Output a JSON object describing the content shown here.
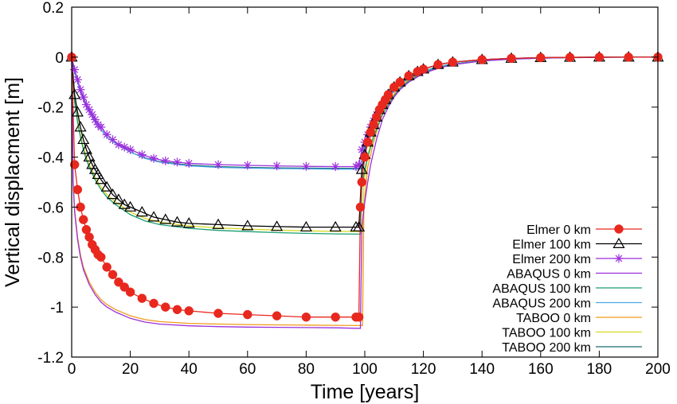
{
  "chart_data": {
    "type": "line",
    "xlabel": "Time [years]",
    "ylabel": "Vertical displacment [m]",
    "xlim": [
      0,
      200
    ],
    "ylim": [
      -1.2,
      0.2
    ],
    "xticks": [
      "0",
      "20",
      "40",
      "60",
      "80",
      "100",
      "120",
      "140",
      "160",
      "180",
      "200"
    ],
    "yticks": [
      "0.2",
      "0",
      "-0.2",
      "-0.4",
      "-0.6",
      "-0.8",
      "-1",
      "-1.2"
    ],
    "grid": false,
    "legend_position": "bottom-right",
    "series": [
      {
        "name": "Elmer 0 km",
        "color": "#e8281e",
        "marker": "filled-circle",
        "line": true,
        "x": [
          0,
          1,
          2,
          3,
          4,
          5,
          6,
          7,
          8,
          9,
          10,
          12,
          14,
          16,
          18,
          20,
          24,
          28,
          32,
          36,
          40,
          50,
          60,
          70,
          80,
          90,
          97,
          98,
          98.5,
          99,
          100,
          101,
          102,
          103,
          104,
          105,
          106,
          107,
          108,
          110,
          112,
          115,
          118,
          120,
          125,
          130,
          140,
          150,
          160,
          170,
          180,
          190,
          200
        ],
        "y": [
          0,
          -0.43,
          -0.53,
          -0.6,
          -0.65,
          -0.69,
          -0.72,
          -0.75,
          -0.77,
          -0.79,
          -0.8,
          -0.84,
          -0.87,
          -0.9,
          -0.92,
          -0.94,
          -0.965,
          -0.985,
          -1.0,
          -1.01,
          -1.015,
          -1.025,
          -1.03,
          -1.035,
          -1.04,
          -1.04,
          -1.04,
          -1.04,
          -0.6,
          -0.5,
          -0.4,
          -0.34,
          -0.3,
          -0.27,
          -0.24,
          -0.21,
          -0.19,
          -0.17,
          -0.15,
          -0.12,
          -0.1,
          -0.075,
          -0.058,
          -0.048,
          -0.03,
          -0.02,
          -0.01,
          -0.005,
          -0.002,
          -0.001,
          0,
          0,
          0
        ]
      },
      {
        "name": "Elmer 100 km",
        "color": "#000000",
        "marker": "open-triangle",
        "line": true,
        "x": [
          0,
          1,
          2,
          3,
          4,
          5,
          6,
          7,
          8,
          9,
          10,
          12,
          14,
          16,
          18,
          20,
          24,
          28,
          32,
          36,
          40,
          50,
          60,
          70,
          80,
          90,
          97,
          98,
          99,
          100,
          101,
          102,
          103,
          104,
          105,
          106,
          107,
          108,
          110,
          112,
          115,
          118,
          120,
          125,
          130,
          140,
          150,
          160,
          170,
          180,
          190,
          200
        ],
        "y": [
          0,
          -0.15,
          -0.22,
          -0.28,
          -0.33,
          -0.37,
          -0.4,
          -0.43,
          -0.45,
          -0.47,
          -0.49,
          -0.52,
          -0.55,
          -0.57,
          -0.59,
          -0.6,
          -0.62,
          -0.64,
          -0.65,
          -0.66,
          -0.665,
          -0.67,
          -0.675,
          -0.678,
          -0.68,
          -0.68,
          -0.68,
          -0.68,
          -0.45,
          -0.39,
          -0.34,
          -0.3,
          -0.27,
          -0.24,
          -0.21,
          -0.19,
          -0.17,
          -0.15,
          -0.12,
          -0.1,
          -0.075,
          -0.058,
          -0.048,
          -0.03,
          -0.02,
          -0.01,
          -0.005,
          -0.002,
          -0.001,
          0,
          0,
          0
        ]
      },
      {
        "name": "Elmer 200 km",
        "color": "#9b2fdc",
        "marker": "asterisk",
        "line": true,
        "x": [
          0,
          1,
          2,
          3,
          4,
          5,
          6,
          7,
          8,
          9,
          10,
          12,
          14,
          16,
          18,
          20,
          24,
          28,
          32,
          36,
          40,
          50,
          60,
          70,
          80,
          90,
          97,
          98,
          99,
          100,
          101,
          102,
          103,
          104,
          105,
          106,
          107,
          108,
          110,
          112,
          115,
          118,
          120,
          125,
          130,
          140,
          150,
          160,
          170,
          180,
          190,
          200
        ],
        "y": [
          0,
          -0.05,
          -0.09,
          -0.13,
          -0.16,
          -0.19,
          -0.21,
          -0.23,
          -0.25,
          -0.27,
          -0.28,
          -0.31,
          -0.33,
          -0.35,
          -0.36,
          -0.37,
          -0.39,
          -0.405,
          -0.415,
          -0.42,
          -0.425,
          -0.43,
          -0.433,
          -0.435,
          -0.437,
          -0.438,
          -0.438,
          -0.43,
          -0.37,
          -0.34,
          -0.31,
          -0.28,
          -0.255,
          -0.23,
          -0.21,
          -0.19,
          -0.17,
          -0.155,
          -0.125,
          -0.1,
          -0.075,
          -0.058,
          -0.048,
          -0.03,
          -0.02,
          -0.01,
          -0.005,
          -0.002,
          -0.001,
          0,
          0,
          0
        ]
      },
      {
        "name": "ABAQUS 0 km",
        "color": "#9b2fdc",
        "marker": "none",
        "line": true,
        "x": [
          0,
          0.5,
          1,
          2,
          3,
          4,
          5,
          6,
          8,
          10,
          12,
          15,
          20,
          25,
          30,
          40,
          50,
          60,
          70,
          80,
          90,
          98.5,
          99,
          100,
          101,
          102,
          103,
          104,
          105,
          106,
          108,
          110,
          112,
          115,
          120,
          125,
          130,
          140,
          150,
          160,
          170,
          180,
          190,
          200
        ],
        "y": [
          0,
          -0.5,
          -0.62,
          -0.73,
          -0.8,
          -0.85,
          -0.88,
          -0.91,
          -0.95,
          -0.98,
          -1.0,
          -1.02,
          -1.045,
          -1.06,
          -1.068,
          -1.075,
          -1.078,
          -1.08,
          -1.081,
          -1.082,
          -1.083,
          -1.085,
          -0.68,
          -0.58,
          -0.5,
          -0.43,
          -0.38,
          -0.33,
          -0.29,
          -0.25,
          -0.2,
          -0.16,
          -0.13,
          -0.1,
          -0.065,
          -0.045,
          -0.03,
          -0.015,
          -0.008,
          -0.004,
          -0.002,
          -0.001,
          0,
          0
        ]
      },
      {
        "name": "ABAQUS 100 km",
        "color": "#1a9e72",
        "marker": "none",
        "line": true,
        "x": [
          0,
          1,
          2,
          3,
          4,
          5,
          6,
          8,
          10,
          12,
          15,
          20,
          25,
          30,
          40,
          50,
          60,
          70,
          80,
          90,
          98.5,
          99,
          100,
          101,
          102,
          103,
          104,
          105,
          106,
          108,
          110,
          112,
          115,
          120,
          125,
          130,
          140,
          150,
          160,
          170,
          180,
          190,
          200
        ],
        "y": [
          0,
          -0.18,
          -0.26,
          -0.32,
          -0.37,
          -0.41,
          -0.44,
          -0.49,
          -0.53,
          -0.56,
          -0.59,
          -0.63,
          -0.655,
          -0.67,
          -0.685,
          -0.693,
          -0.698,
          -0.702,
          -0.705,
          -0.707,
          -0.708,
          -0.52,
          -0.45,
          -0.4,
          -0.36,
          -0.32,
          -0.29,
          -0.26,
          -0.23,
          -0.19,
          -0.155,
          -0.125,
          -0.095,
          -0.062,
          -0.043,
          -0.03,
          -0.015,
          -0.008,
          -0.004,
          -0.002,
          -0.001,
          0,
          0
        ]
      },
      {
        "name": "ABAQUS 200 km",
        "color": "#4aa8e8",
        "marker": "none",
        "line": true,
        "x": [
          0,
          1,
          2,
          3,
          4,
          5,
          6,
          8,
          10,
          12,
          15,
          20,
          25,
          30,
          40,
          50,
          60,
          70,
          80,
          90,
          98.5,
          99,
          100,
          101,
          102,
          103,
          104,
          105,
          106,
          108,
          110,
          112,
          115,
          120,
          125,
          130,
          140,
          150,
          160,
          170,
          180,
          190,
          200
        ],
        "y": [
          0,
          -0.06,
          -0.1,
          -0.14,
          -0.17,
          -0.2,
          -0.22,
          -0.26,
          -0.29,
          -0.32,
          -0.345,
          -0.38,
          -0.405,
          -0.42,
          -0.435,
          -0.441,
          -0.444,
          -0.446,
          -0.447,
          -0.448,
          -0.448,
          -0.4,
          -0.36,
          -0.33,
          -0.3,
          -0.27,
          -0.245,
          -0.22,
          -0.2,
          -0.165,
          -0.135,
          -0.11,
          -0.085,
          -0.058,
          -0.04,
          -0.028,
          -0.014,
          -0.007,
          -0.003,
          -0.001,
          0,
          0,
          0
        ]
      },
      {
        "name": "TABOO 0 km",
        "color": "#f09a1a",
        "marker": "none",
        "line": true,
        "x": [
          0,
          0.5,
          1,
          2,
          3,
          4,
          5,
          6,
          8,
          10,
          12,
          15,
          20,
          25,
          30,
          40,
          50,
          60,
          70,
          80,
          90,
          99.2,
          99.7,
          100.5,
          101,
          102,
          103,
          104,
          105,
          106,
          108,
          110,
          112,
          115,
          120,
          125,
          130,
          140,
          150,
          160,
          170,
          180,
          190,
          200
        ],
        "y": [
          0,
          -0.5,
          -0.61,
          -0.72,
          -0.79,
          -0.84,
          -0.87,
          -0.9,
          -0.94,
          -0.97,
          -0.99,
          -1.01,
          -1.035,
          -1.05,
          -1.058,
          -1.065,
          -1.068,
          -1.07,
          -1.071,
          -1.072,
          -1.073,
          -1.074,
          -0.6,
          -0.5,
          -0.44,
          -0.39,
          -0.34,
          -0.3,
          -0.26,
          -0.23,
          -0.185,
          -0.15,
          -0.12,
          -0.09,
          -0.06,
          -0.042,
          -0.028,
          -0.014,
          -0.007,
          -0.003,
          -0.001,
          0,
          0,
          0
        ]
      },
      {
        "name": "TABOO 100 km",
        "color": "#d8d820",
        "marker": "none",
        "line": true,
        "x": [
          0,
          1,
          2,
          3,
          4,
          5,
          6,
          8,
          10,
          12,
          15,
          20,
          25,
          30,
          40,
          50,
          60,
          70,
          80,
          90,
          99.2,
          99.7,
          100.5,
          101,
          102,
          103,
          104,
          105,
          106,
          108,
          110,
          112,
          115,
          120,
          125,
          130,
          140,
          150,
          160,
          170,
          180,
          190,
          200
        ],
        "y": [
          0,
          -0.17,
          -0.25,
          -0.31,
          -0.36,
          -0.4,
          -0.43,
          -0.48,
          -0.52,
          -0.55,
          -0.58,
          -0.62,
          -0.645,
          -0.66,
          -0.675,
          -0.683,
          -0.688,
          -0.692,
          -0.695,
          -0.697,
          -0.698,
          -0.5,
          -0.44,
          -0.39,
          -0.35,
          -0.31,
          -0.28,
          -0.25,
          -0.22,
          -0.18,
          -0.148,
          -0.12,
          -0.09,
          -0.06,
          -0.042,
          -0.028,
          -0.014,
          -0.007,
          -0.003,
          -0.001,
          0,
          0,
          0
        ]
      },
      {
        "name": "TABOO 200 km",
        "color": "#1a6b6b",
        "marker": "none",
        "line": true,
        "x": [
          0,
          1,
          2,
          3,
          4,
          5,
          6,
          8,
          10,
          12,
          15,
          20,
          25,
          30,
          40,
          50,
          60,
          70,
          80,
          90,
          99.2,
          99.7,
          100.5,
          101,
          102,
          103,
          104,
          105,
          106,
          108,
          110,
          112,
          115,
          120,
          125,
          130,
          140,
          150,
          160,
          170,
          180,
          190,
          200
        ],
        "y": [
          0,
          -0.06,
          -0.1,
          -0.14,
          -0.17,
          -0.2,
          -0.22,
          -0.26,
          -0.29,
          -0.32,
          -0.345,
          -0.38,
          -0.403,
          -0.418,
          -0.432,
          -0.438,
          -0.441,
          -0.443,
          -0.444,
          -0.445,
          -0.445,
          -0.39,
          -0.35,
          -0.32,
          -0.29,
          -0.265,
          -0.24,
          -0.215,
          -0.195,
          -0.16,
          -0.13,
          -0.107,
          -0.082,
          -0.056,
          -0.039,
          -0.027,
          -0.013,
          -0.006,
          -0.003,
          -0.001,
          0,
          0,
          0
        ]
      }
    ]
  }
}
